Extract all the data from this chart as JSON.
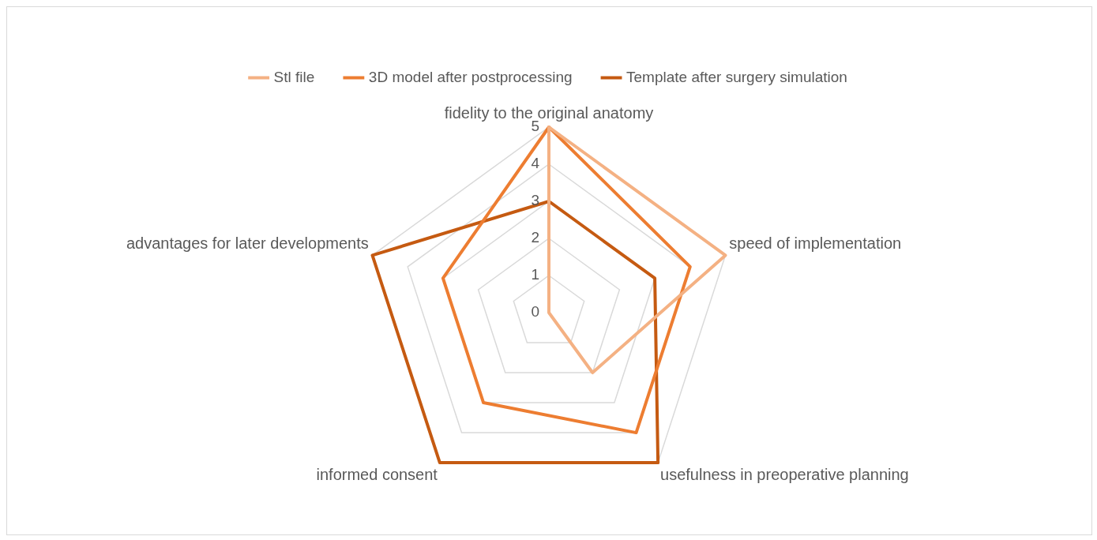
{
  "chart_data": {
    "type": "radar",
    "categories": [
      "fidelity to the original anatomy",
      "speed of implementation",
      "usefulness in preoperative planning",
      "informed consent",
      "advantages for later developments"
    ],
    "series": [
      {
        "name": "Stl file",
        "color": "#f4b183",
        "values": [
          5,
          5,
          2,
          0,
          0
        ]
      },
      {
        "name": "3D model after postprocessing",
        "color": "#ed7d31",
        "values": [
          5,
          4,
          4,
          3,
          3
        ]
      },
      {
        "name": "Template after surgery simulation",
        "color": "#c55a11",
        "values": [
          3,
          3,
          5,
          5,
          5
        ]
      }
    ],
    "ylim": [
      0,
      5
    ],
    "yticks": [
      0,
      1,
      2,
      3,
      4,
      5
    ],
    "grid": true,
    "legend": "top",
    "marker": "none"
  }
}
